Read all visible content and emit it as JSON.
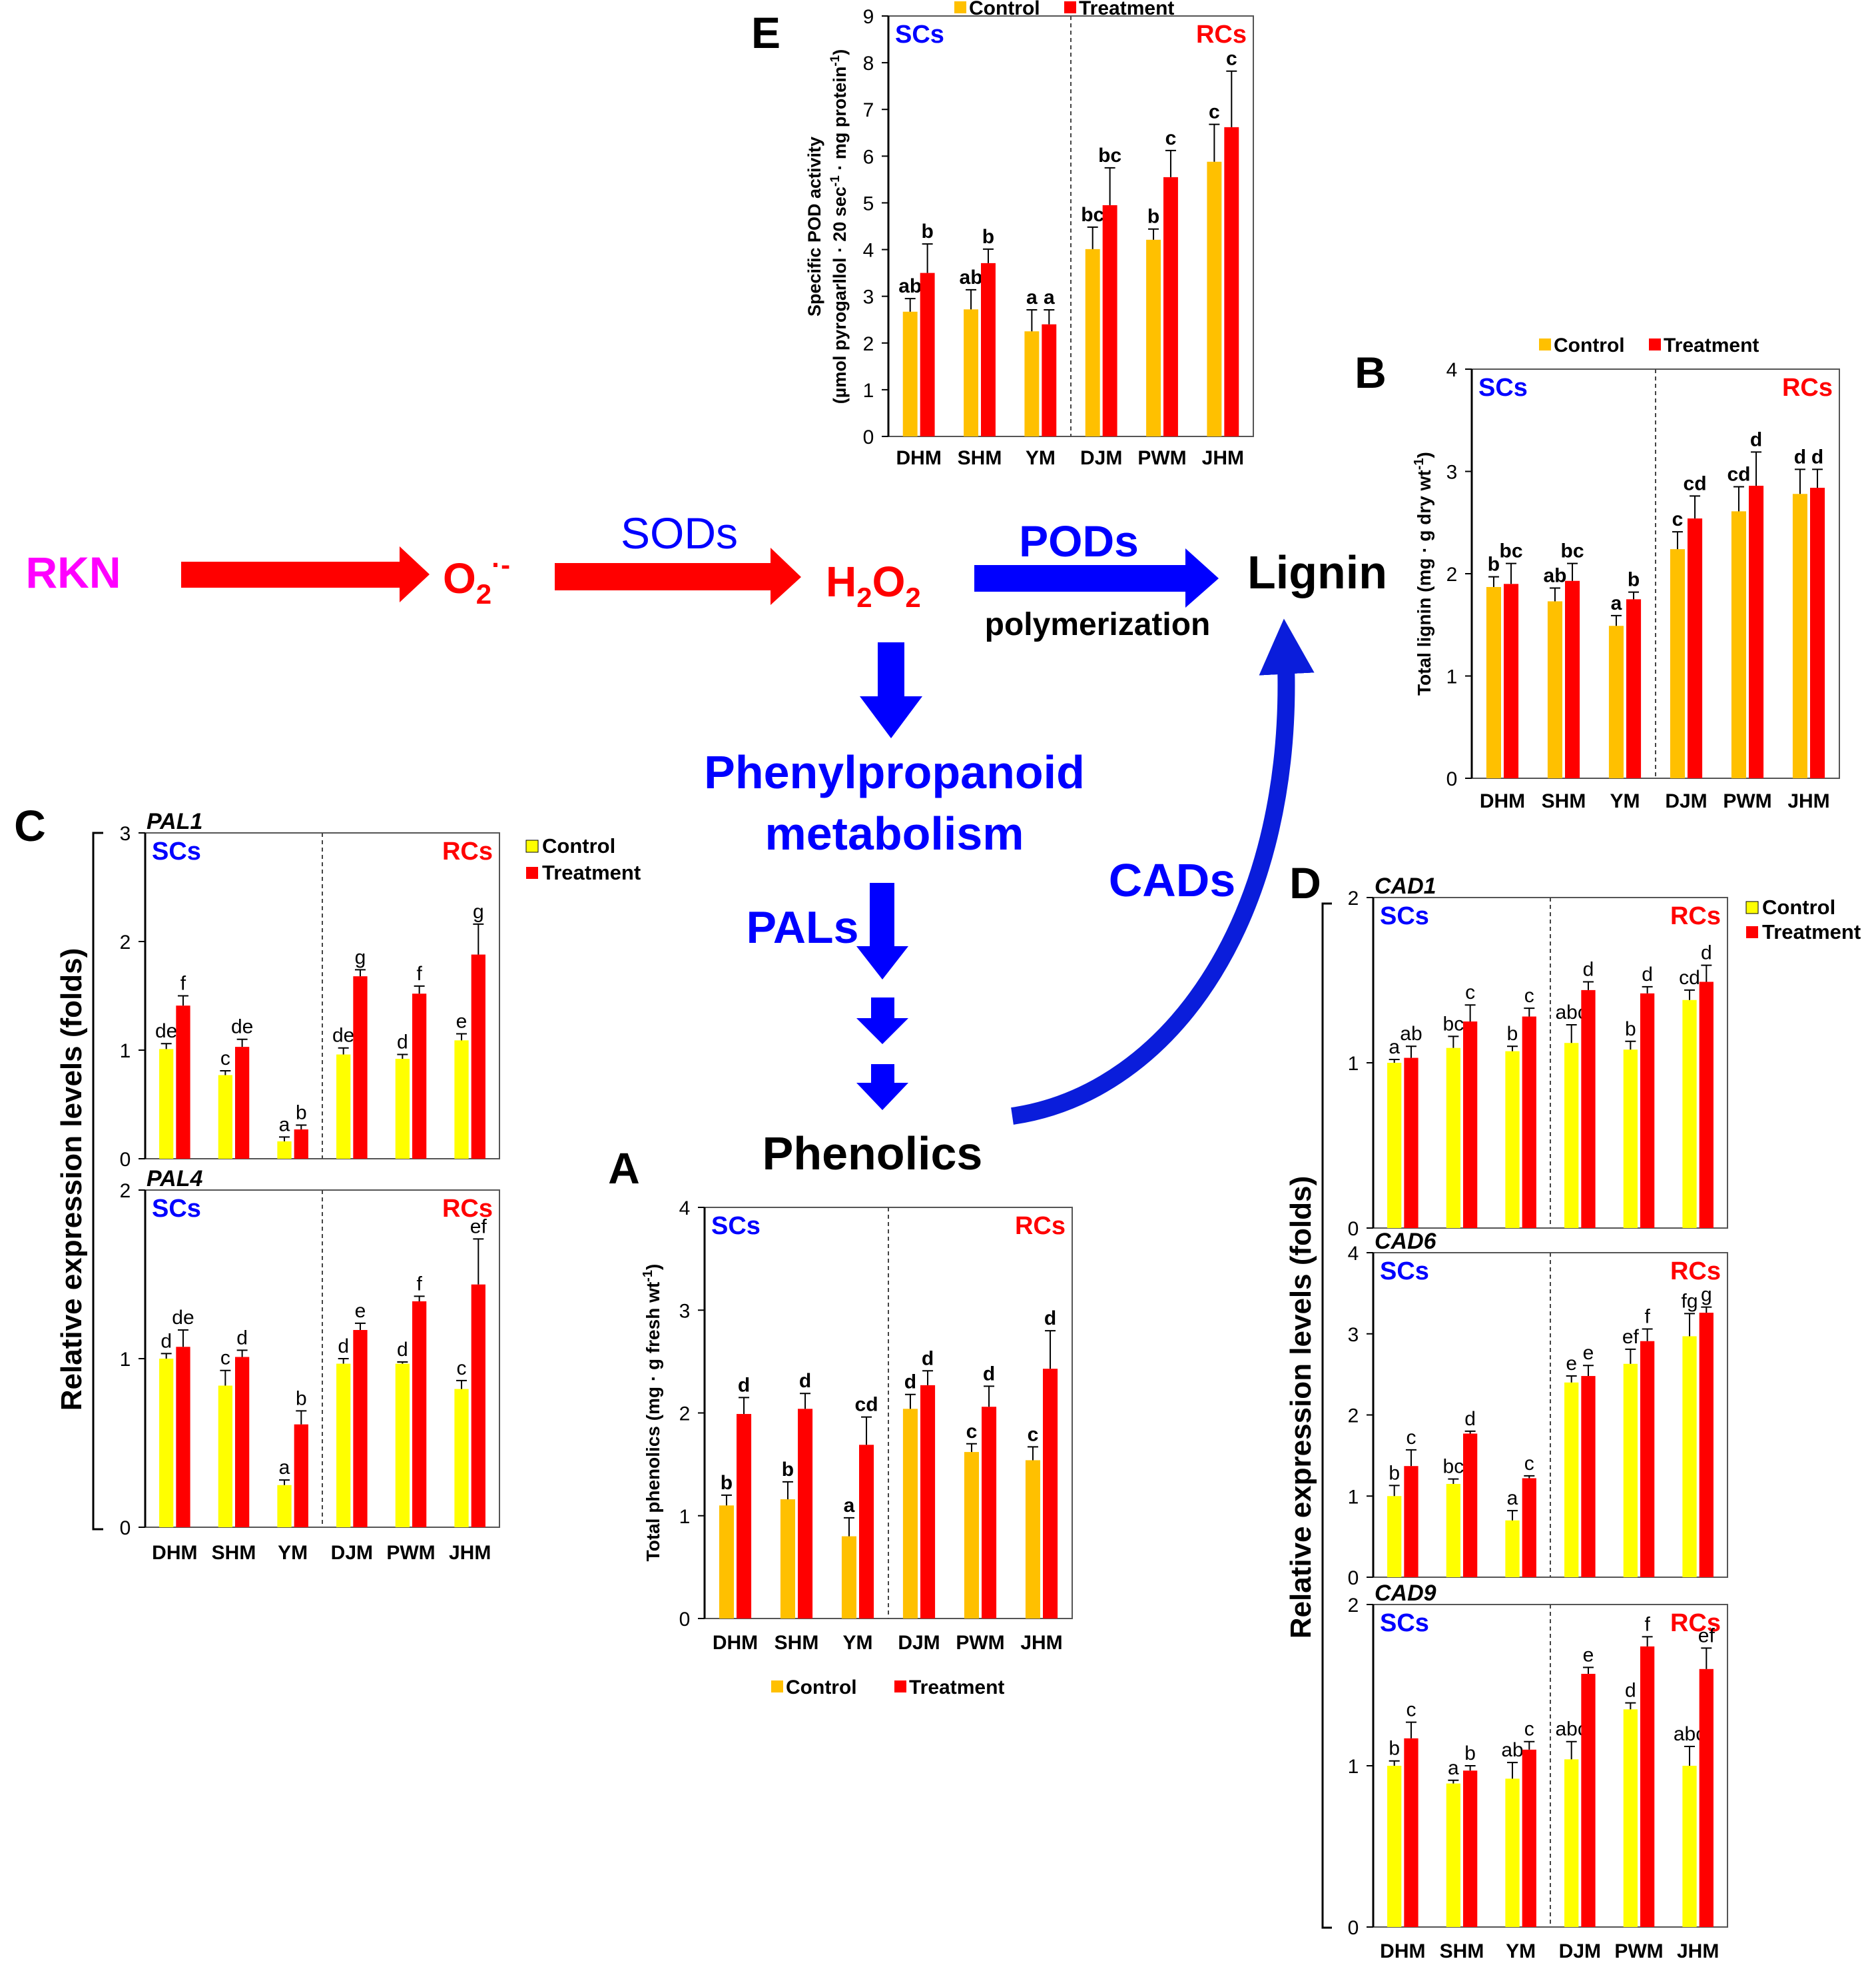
{
  "colors": {
    "control_yellow": "#FFFF00",
    "control_orange": "#FFC000",
    "treatment": "#FF0000",
    "blue": "#0000FF",
    "magenta": "#FF00FF",
    "sc_label": "#0000FF",
    "rc_label": "#FF0000",
    "black": "#000000"
  },
  "pathway": {
    "rkn": "RKN",
    "o2": "O",
    "o2_sub": "2",
    "o2_sup": "·-",
    "sods": "SODs",
    "h2o2_h": "H",
    "h2o2_sub1": "2",
    "h2o2_o": "O",
    "h2o2_sub2": "2",
    "pods": "PODs",
    "polymerization": "polymerization",
    "lignin": "Lignin",
    "phenyl_line1": "Phenylpropanoid",
    "phenyl_line2": "metabolism",
    "pals": "PALs",
    "cads": "CADs",
    "phenolics": "Phenolics"
  },
  "chart_data": [
    {
      "id": "A",
      "panel_label": "A",
      "type": "bar",
      "categories": [
        "DHM",
        "SHM",
        "YM",
        "DJM",
        "PWM",
        "JHM"
      ],
      "ylabel": "Total phenolics (mg · g fresh wt-1)",
      "ylim": [
        0,
        4
      ],
      "yticks": [
        0,
        1,
        2,
        3,
        4
      ],
      "group_left": "SCs",
      "group_right": "RCs",
      "legend": [
        "Control",
        "Treatment"
      ],
      "legend_position": "bottom",
      "series": [
        {
          "name": "Control",
          "values": [
            1.1,
            1.16,
            0.8,
            2.04,
            1.62,
            1.54
          ],
          "errors": [
            0.1,
            0.17,
            0.18,
            0.14,
            0.08,
            0.13
          ],
          "letters": [
            "b",
            "b",
            "a",
            "d",
            "c",
            "c"
          ]
        },
        {
          "name": "Treatment",
          "values": [
            1.99,
            2.04,
            1.69,
            2.27,
            2.06,
            2.43
          ],
          "errors": [
            0.16,
            0.15,
            0.27,
            0.14,
            0.2,
            0.37
          ],
          "letters": [
            "d",
            "d",
            "cd",
            "d",
            "d",
            "d"
          ]
        }
      ]
    },
    {
      "id": "B",
      "panel_label": "B",
      "type": "bar",
      "categories": [
        "DHM",
        "SHM",
        "YM",
        "DJM",
        "PWM",
        "JHM"
      ],
      "ylabel": "Total lignin (mg · g dry wt-1)",
      "ylim": [
        0,
        4
      ],
      "yticks": [
        0,
        1,
        2,
        3,
        4
      ],
      "group_left": "SCs",
      "group_right": "RCs",
      "legend": [
        "Control",
        "Treatment"
      ],
      "legend_position": "top",
      "series": [
        {
          "name": "Control",
          "values": [
            1.87,
            1.73,
            1.49,
            2.24,
            2.61,
            2.78
          ],
          "errors": [
            0.1,
            0.13,
            0.1,
            0.17,
            0.24,
            0.24
          ],
          "letters": [
            "b",
            "ab",
            "a",
            "c",
            "cd",
            "d"
          ]
        },
        {
          "name": "Treatment",
          "values": [
            1.9,
            1.93,
            1.75,
            2.54,
            2.86,
            2.84
          ],
          "errors": [
            0.2,
            0.17,
            0.07,
            0.22,
            0.33,
            0.18
          ],
          "letters": [
            "bc",
            "bc",
            "b",
            "cd",
            "d",
            "d"
          ]
        }
      ]
    },
    {
      "id": "E",
      "panel_label": "E",
      "type": "bar",
      "categories": [
        "DHM",
        "SHM",
        "YM",
        "DJM",
        "PWM",
        "JHM"
      ],
      "ylabel_line1": "Specific POD activity",
      "ylabel_line2": "(µmol pyrogarllol · 20 sec-1 · mg protein-1)",
      "ylim": [
        0,
        9
      ],
      "yticks": [
        0,
        1,
        2,
        3,
        4,
        5,
        6,
        7,
        8,
        9
      ],
      "group_left": "SCs",
      "group_right": "RCs",
      "legend": [
        "Control",
        "Treatment"
      ],
      "legend_position": "top",
      "series": [
        {
          "name": "Control",
          "values": [
            2.67,
            2.72,
            2.25,
            4.01,
            4.21,
            5.88
          ],
          "errors": [
            0.28,
            0.42,
            0.46,
            0.47,
            0.23,
            0.8
          ],
          "letters": [
            "ab",
            "ab",
            "a",
            "bc",
            "b",
            "c"
          ]
        },
        {
          "name": "Treatment",
          "values": [
            3.5,
            3.71,
            2.4,
            4.95,
            5.55,
            6.62
          ],
          "errors": [
            0.62,
            0.3,
            0.31,
            0.8,
            0.57,
            1.2
          ],
          "letters": [
            "b",
            "b",
            "a",
            "bc",
            "c",
            "c"
          ]
        }
      ]
    },
    {
      "id": "PAL1",
      "type": "bar",
      "gene": "PAL1",
      "categories": [
        "DHM",
        "SHM",
        "YM",
        "DJM",
        "PWM",
        "JHM"
      ],
      "ylim": [
        0,
        3
      ],
      "yticks": [
        0,
        1,
        2,
        3
      ],
      "group_left": "SCs",
      "group_right": "RCs",
      "series": [
        {
          "name": "Control",
          "values": [
            1.01,
            0.77,
            0.16,
            0.96,
            0.92,
            1.09
          ],
          "errors": [
            0.05,
            0.04,
            0.04,
            0.06,
            0.04,
            0.06
          ],
          "letters": [
            "de",
            "c",
            "a",
            "de",
            "d",
            "e"
          ]
        },
        {
          "name": "Treatment",
          "values": [
            1.41,
            1.03,
            0.27,
            1.68,
            1.52,
            1.88
          ],
          "errors": [
            0.09,
            0.07,
            0.04,
            0.06,
            0.07,
            0.28
          ],
          "letters": [
            "f",
            "de",
            "b",
            "g",
            "f",
            "g"
          ]
        }
      ]
    },
    {
      "id": "PAL4",
      "type": "bar",
      "gene": "PAL4",
      "categories": [
        "DHM",
        "SHM",
        "YM",
        "DJM",
        "PWM",
        "JHM"
      ],
      "ylim": [
        0,
        2
      ],
      "yticks": [
        0,
        1,
        2
      ],
      "group_left": "SCs",
      "group_right": "RCs",
      "series": [
        {
          "name": "Control",
          "values": [
            1.0,
            0.84,
            0.25,
            0.97,
            0.97,
            0.82
          ],
          "errors": [
            0.03,
            0.09,
            0.03,
            0.03,
            0.01,
            0.05
          ],
          "letters": [
            "d",
            "c",
            "a",
            "d",
            "d",
            "c"
          ]
        },
        {
          "name": "Treatment",
          "values": [
            1.07,
            1.01,
            0.61,
            1.17,
            1.34,
            1.44
          ],
          "errors": [
            0.1,
            0.04,
            0.08,
            0.04,
            0.03,
            0.27
          ],
          "letters": [
            "de",
            "d",
            "b",
            "e",
            "f",
            "ef"
          ]
        }
      ]
    },
    {
      "id": "CAD1",
      "type": "bar",
      "gene": "CAD1",
      "categories": [
        "DHM",
        "SHM",
        "YM",
        "DJM",
        "PWM",
        "JHM"
      ],
      "ylim": [
        0,
        2
      ],
      "yticks": [
        0,
        1,
        2
      ],
      "group_left": "SCs",
      "group_right": "RCs",
      "series": [
        {
          "name": "Control",
          "values": [
            1.0,
            1.09,
            1.07,
            1.12,
            1.08,
            1.38
          ],
          "errors": [
            0.02,
            0.07,
            0.03,
            0.11,
            0.05,
            0.06
          ],
          "letters": [
            "a",
            "bc",
            "b",
            "abc",
            "b",
            "cd"
          ]
        },
        {
          "name": "Treatment",
          "values": [
            1.03,
            1.25,
            1.28,
            1.44,
            1.42,
            1.49
          ],
          "errors": [
            0.07,
            0.1,
            0.05,
            0.05,
            0.04,
            0.1
          ],
          "letters": [
            "ab",
            "c",
            "c",
            "d",
            "d",
            "d"
          ]
        }
      ]
    },
    {
      "id": "CAD6",
      "type": "bar",
      "gene": "CAD6",
      "categories": [
        "DHM",
        "SHM",
        "YM",
        "DJM",
        "PWM",
        "JHM"
      ],
      "ylim": [
        0,
        4
      ],
      "yticks": [
        0,
        1,
        2,
        3,
        4
      ],
      "group_left": "SCs",
      "group_right": "RCs",
      "series": [
        {
          "name": "Control",
          "values": [
            1.0,
            1.15,
            0.7,
            2.4,
            2.63,
            2.97
          ],
          "errors": [
            0.13,
            0.06,
            0.12,
            0.08,
            0.18,
            0.28
          ],
          "letters": [
            "b",
            "bc",
            "a",
            "e",
            "ef",
            "fg"
          ]
        },
        {
          "name": "Treatment",
          "values": [
            1.37,
            1.77,
            1.22,
            2.48,
            2.91,
            3.26
          ],
          "errors": [
            0.2,
            0.03,
            0.03,
            0.13,
            0.15,
            0.07
          ],
          "letters": [
            "c",
            "d",
            "c",
            "e",
            "f",
            "g"
          ]
        }
      ]
    },
    {
      "id": "CAD9",
      "type": "bar",
      "gene": "CAD9",
      "categories": [
        "DHM",
        "SHM",
        "YM",
        "DJM",
        "PWM",
        "JHM"
      ],
      "ylim": [
        0,
        2
      ],
      "yticks": [
        0,
        1,
        2
      ],
      "group_left": "SCs",
      "group_right": "RCs",
      "series": [
        {
          "name": "Control",
          "values": [
            1.0,
            0.89,
            0.92,
            1.04,
            1.35,
            1.0
          ],
          "errors": [
            0.03,
            0.02,
            0.1,
            0.11,
            0.04,
            0.12
          ],
          "letters": [
            "b",
            "a",
            "ab",
            "abc",
            "d",
            "abc"
          ]
        },
        {
          "name": "Treatment",
          "values": [
            1.17,
            0.97,
            1.1,
            1.57,
            1.74,
            1.6
          ],
          "errors": [
            0.1,
            0.03,
            0.05,
            0.04,
            0.06,
            0.13
          ],
          "letters": [
            "c",
            "b",
            "c",
            "e",
            "f",
            "ef"
          ]
        }
      ]
    }
  ],
  "panel_C": {
    "label": "C",
    "ylabel": "Relative expression levels (folds)",
    "legend": [
      "Control",
      "Treatment"
    ]
  },
  "panel_D": {
    "label": "D",
    "ylabel": "Relative expression levels (folds)",
    "legend": [
      "Control",
      "Treatment"
    ]
  }
}
